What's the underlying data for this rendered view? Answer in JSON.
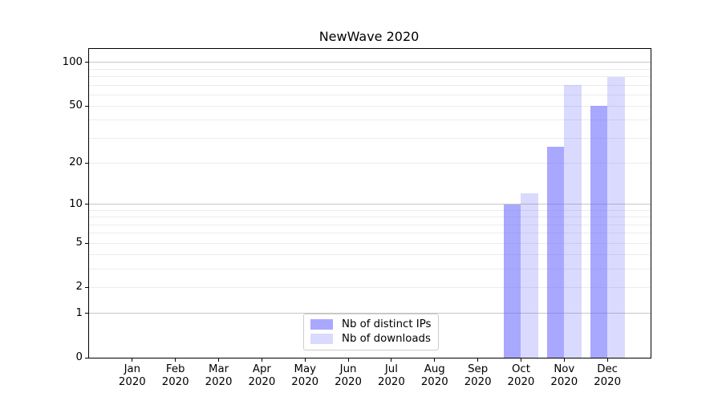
{
  "title": "NewWave 2020",
  "chart_data": {
    "type": "bar",
    "title": "NewWave 2020",
    "categories": [
      "Jan",
      "Feb",
      "Mar",
      "Apr",
      "May",
      "Jun",
      "Jul",
      "Aug",
      "Sep",
      "Oct",
      "Nov",
      "Dec"
    ],
    "category_year": "2020",
    "series": [
      {
        "key": "distinct-ips",
        "name": "Nb of distinct IPs",
        "color": "rgba(102,102,255,0.57)",
        "values": [
          0,
          0,
          0,
          0,
          0,
          0,
          0,
          0,
          0,
          10,
          26,
          50
        ]
      },
      {
        "key": "downloads",
        "name": "Nb of downloads",
        "color": "rgba(102,102,255,0.24)",
        "values": [
          0,
          0,
          0,
          0,
          0,
          0,
          0,
          0,
          0,
          12,
          70,
          80
        ]
      }
    ],
    "y_axis": {
      "scale": "log1p",
      "ticks": [
        0,
        1,
        2,
        5,
        10,
        20,
        50,
        100
      ],
      "top_value": 124,
      "major_gridlines": [
        1,
        10,
        100
      ],
      "minor_gridlines": [
        2,
        3,
        4,
        5,
        6,
        7,
        8,
        9,
        20,
        30,
        40,
        50,
        60,
        70,
        80,
        90
      ]
    },
    "legend": {
      "position": "lower center",
      "entries": [
        "Nb of distinct IPs",
        "Nb of downloads"
      ]
    },
    "grid": true,
    "colors": {
      "major_grid": "#c6c6c6",
      "minor_grid": "#ececec",
      "axis": "#000000",
      "background": "#ffffff"
    }
  }
}
